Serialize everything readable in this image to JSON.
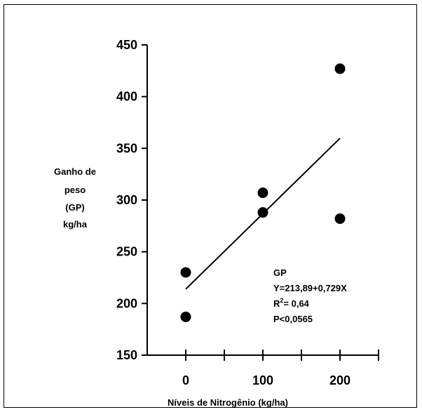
{
  "chart_data": {
    "type": "scatter",
    "title": "",
    "xlabel": "Níveis de Nitrogênio (kg/ha)",
    "ylabel_lines": [
      "Ganho de",
      "peso",
      "(GP)",
      "kg/ha"
    ],
    "x_ticks": [
      0,
      100,
      200
    ],
    "y_ticks": [
      150,
      200,
      250,
      300,
      350,
      400,
      450
    ],
    "xlim": [
      -50,
      250
    ],
    "ylim": [
      150,
      450
    ],
    "points": [
      {
        "x": 0,
        "y": 230
      },
      {
        "x": 0,
        "y": 187
      },
      {
        "x": 100,
        "y": 307
      },
      {
        "x": 100,
        "y": 288
      },
      {
        "x": 200,
        "y": 427
      },
      {
        "x": 200,
        "y": 282
      }
    ],
    "regression": {
      "intercept": 213.89,
      "slope": 0.729,
      "x_start": 0,
      "x_end": 200
    },
    "annotation": {
      "label": "GP",
      "equation": "Y=213,89+0,729X",
      "r2_prefix": "R",
      "r2_sup": "2",
      "r2_value": "= 0,64",
      "p_value": "P<0,0565"
    },
    "grid": false,
    "legend": "none"
  }
}
